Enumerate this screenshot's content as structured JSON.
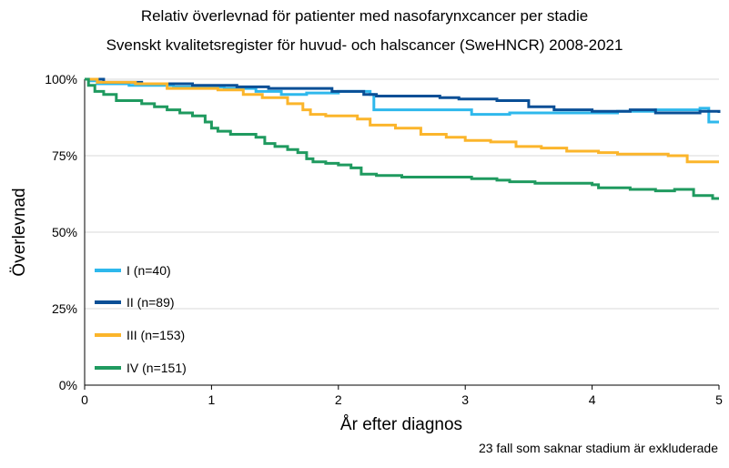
{
  "chart_data": {
    "type": "line",
    "subtype": "step",
    "title": "Relativ överlevnad för patienter med nasofarynxcancer per stadie",
    "subtitle": "Svenskt kvalitetsregister för huvud- och halscancer (SweHNCR) 2008-2021",
    "xlabel": "År efter diagnos",
    "ylabel": "Överlevnad",
    "xlim": [
      0,
      5
    ],
    "ylim": [
      0,
      100
    ],
    "x_ticks": [
      0,
      1,
      2,
      3,
      4,
      5
    ],
    "x_tick_labels": [
      "0",
      "1",
      "2",
      "3",
      "4",
      "5"
    ],
    "y_ticks": [
      0,
      25,
      50,
      75,
      100
    ],
    "y_tick_labels": [
      "0%",
      "25%",
      "50%",
      "75%",
      "100%"
    ],
    "grid": "horizontal",
    "legend_position": "left",
    "footnote": "23 fall som saknar stadium är exkluderade",
    "series": [
      {
        "name": "I (n=40)",
        "color": "#2eb8ec",
        "points": [
          [
            0,
            100
          ],
          [
            0.04,
            99.5
          ],
          [
            0.1,
            98.5
          ],
          [
            0.35,
            98
          ],
          [
            0.7,
            97.5
          ],
          [
            1.1,
            97
          ],
          [
            1.35,
            96
          ],
          [
            1.55,
            95
          ],
          [
            1.75,
            95.5
          ],
          [
            2.0,
            96
          ],
          [
            2.25,
            95
          ],
          [
            2.28,
            90
          ],
          [
            2.6,
            90
          ],
          [
            2.85,
            90
          ],
          [
            3.05,
            88.5
          ],
          [
            3.35,
            89
          ],
          [
            3.65,
            89
          ],
          [
            3.95,
            89
          ],
          [
            4.2,
            89.5
          ],
          [
            4.5,
            90
          ],
          [
            4.85,
            90.5
          ],
          [
            4.92,
            86
          ],
          [
            5,
            86
          ]
        ]
      },
      {
        "name": "II (n=89)",
        "color": "#0a4f96",
        "points": [
          [
            0,
            100
          ],
          [
            0.15,
            99
          ],
          [
            0.45,
            98.5
          ],
          [
            0.85,
            98
          ],
          [
            1.1,
            98
          ],
          [
            1.2,
            97.5
          ],
          [
            1.45,
            97
          ],
          [
            1.7,
            97
          ],
          [
            1.95,
            96
          ],
          [
            2.2,
            95
          ],
          [
            2.3,
            94.5
          ],
          [
            2.6,
            94.5
          ],
          [
            2.8,
            94
          ],
          [
            2.95,
            93.5
          ],
          [
            3.25,
            93
          ],
          [
            3.5,
            91
          ],
          [
            3.7,
            90
          ],
          [
            4.0,
            89.5
          ],
          [
            4.3,
            90
          ],
          [
            4.5,
            89
          ],
          [
            4.75,
            89
          ],
          [
            4.85,
            89.5
          ],
          [
            5,
            89
          ]
        ]
      },
      {
        "name": "III (n=153)",
        "color": "#fbb52b",
        "points": [
          [
            0,
            100
          ],
          [
            0.1,
            99
          ],
          [
            0.4,
            98.5
          ],
          [
            0.65,
            97
          ],
          [
            1.05,
            96.5
          ],
          [
            1.25,
            95
          ],
          [
            1.4,
            94
          ],
          [
            1.6,
            92
          ],
          [
            1.72,
            90
          ],
          [
            1.78,
            88.5
          ],
          [
            1.9,
            88
          ],
          [
            2.15,
            87
          ],
          [
            2.25,
            85
          ],
          [
            2.45,
            84
          ],
          [
            2.65,
            82
          ],
          [
            2.85,
            81
          ],
          [
            3.0,
            80
          ],
          [
            3.2,
            79.5
          ],
          [
            3.4,
            78
          ],
          [
            3.6,
            77.5
          ],
          [
            3.8,
            76.5
          ],
          [
            4.05,
            76
          ],
          [
            4.2,
            75.5
          ],
          [
            4.4,
            75.5
          ],
          [
            4.6,
            75
          ],
          [
            4.75,
            73
          ],
          [
            4.9,
            73
          ],
          [
            5,
            73
          ]
        ]
      },
      {
        "name": "IV (n=151)",
        "color": "#1f9a5f",
        "points": [
          [
            0,
            100
          ],
          [
            0.03,
            98
          ],
          [
            0.08,
            96
          ],
          [
            0.15,
            95
          ],
          [
            0.25,
            93
          ],
          [
            0.45,
            92
          ],
          [
            0.55,
            91
          ],
          [
            0.65,
            90
          ],
          [
            0.75,
            89
          ],
          [
            0.85,
            88
          ],
          [
            0.95,
            86
          ],
          [
            1.0,
            84
          ],
          [
            1.05,
            83
          ],
          [
            1.15,
            82
          ],
          [
            1.3,
            82
          ],
          [
            1.35,
            81
          ],
          [
            1.42,
            79
          ],
          [
            1.5,
            78
          ],
          [
            1.6,
            77
          ],
          [
            1.68,
            76
          ],
          [
            1.75,
            74
          ],
          [
            1.8,
            73
          ],
          [
            1.9,
            72.5
          ],
          [
            2.0,
            72
          ],
          [
            2.1,
            71
          ],
          [
            2.18,
            69
          ],
          [
            2.3,
            68.5
          ],
          [
            2.5,
            68
          ],
          [
            2.65,
            68
          ],
          [
            2.95,
            68
          ],
          [
            3.05,
            67.5
          ],
          [
            3.25,
            67
          ],
          [
            3.35,
            66.5
          ],
          [
            3.55,
            66
          ],
          [
            3.8,
            66
          ],
          [
            4.0,
            65.5
          ],
          [
            4.05,
            64.5
          ],
          [
            4.15,
            64.5
          ],
          [
            4.3,
            64
          ],
          [
            4.5,
            63.5
          ],
          [
            4.65,
            64
          ],
          [
            4.8,
            62
          ],
          [
            4.95,
            61
          ],
          [
            5,
            61
          ]
        ]
      }
    ]
  }
}
